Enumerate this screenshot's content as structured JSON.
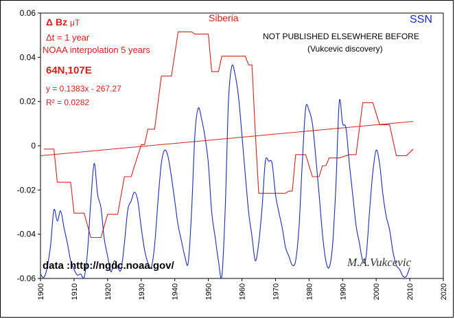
{
  "chart_data": {
    "type": "line",
    "title": "Siberia",
    "xlim": [
      1900,
      2020
    ],
    "ylim": [
      -0.06,
      0.06
    ],
    "x_ticks": [
      1900,
      1910,
      1920,
      1930,
      1940,
      1950,
      1960,
      1970,
      1980,
      1990,
      2000,
      2010,
      2020
    ],
    "y_ticks": [
      "0.06",
      "0.04",
      "0.02",
      "0",
      "-0.02",
      "-0.04",
      "-0.06"
    ],
    "y_tick_values": [
      0.06,
      0.04,
      0.02,
      0,
      -0.02,
      -0.04,
      -0.06
    ],
    "grid": false,
    "series": [
      {
        "name": "Δ Bz μT",
        "color": "#d42020",
        "points": [
          [
            1901,
            -0.0015
          ],
          [
            1904,
            -0.0015
          ],
          [
            1905,
            -0.0165
          ],
          [
            1909,
            -0.0165
          ],
          [
            1910,
            -0.0305
          ],
          [
            1913,
            -0.0305
          ],
          [
            1915,
            -0.0415
          ],
          [
            1918,
            -0.0415
          ],
          [
            1920,
            -0.031
          ],
          [
            1923,
            -0.031
          ],
          [
            1925,
            -0.014
          ],
          [
            1927,
            -0.014
          ],
          [
            1930,
            0.0005
          ],
          [
            1931,
            0.0005
          ],
          [
            1932,
            0.0075
          ],
          [
            1934,
            0.0075
          ],
          [
            1936,
            0.0315
          ],
          [
            1939,
            0.0315
          ],
          [
            1941,
            0.0515
          ],
          [
            1945,
            0.0515
          ],
          [
            1946,
            0.0505
          ],
          [
            1950,
            0.0505
          ],
          [
            1951,
            0.0335
          ],
          [
            1953,
            0.0335
          ],
          [
            1954,
            0.0405
          ],
          [
            1961,
            0.0405
          ],
          [
            1962,
            0.0365
          ],
          [
            1963,
            0.0365
          ],
          [
            1964,
            0.0055
          ],
          [
            1965,
            -0.0215
          ],
          [
            1973,
            -0.0215
          ],
          [
            1974,
            -0.0205
          ],
          [
            1975,
            -0.0205
          ],
          [
            1976,
            -0.004
          ],
          [
            1979,
            -0.004
          ],
          [
            1981,
            -0.014
          ],
          [
            1983,
            -0.014
          ],
          [
            1984,
            -0.009
          ],
          [
            1985,
            -0.009
          ],
          [
            1986,
            -0.0055
          ],
          [
            1989,
            -0.0055
          ],
          [
            1992,
            -0.004
          ],
          [
            1994,
            -0.004
          ],
          [
            1996,
            0.0195
          ],
          [
            1999,
            0.0195
          ],
          [
            2001,
            0.0095
          ],
          [
            2004,
            0.0095
          ],
          [
            2006,
            -0.0045
          ],
          [
            2009,
            -0.0045
          ],
          [
            2011,
            -0.0015
          ]
        ]
      },
      {
        "name": "SSN",
        "color": "#1a2ab8",
        "points": [
          [
            1900,
            -0.058
          ],
          [
            1901,
            -0.0595
          ],
          [
            1902,
            -0.055
          ],
          [
            1903,
            -0.045
          ],
          [
            1904,
            -0.029
          ],
          [
            1905,
            -0.034
          ],
          [
            1906,
            -0.0295
          ],
          [
            1907,
            -0.037
          ],
          [
            1908,
            -0.044
          ],
          [
            1909,
            -0.052
          ],
          [
            1910,
            -0.056
          ],
          [
            1911,
            -0.0585
          ],
          [
            1912,
            -0.058
          ],
          [
            1913,
            -0.0595
          ],
          [
            1914,
            -0.048
          ],
          [
            1915,
            -0.025
          ],
          [
            1916,
            -0.008
          ],
          [
            1917,
            -0.022
          ],
          [
            1918,
            -0.028
          ],
          [
            1919,
            -0.042
          ],
          [
            1920,
            -0.05
          ],
          [
            1921,
            -0.057
          ],
          [
            1922,
            -0.052
          ],
          [
            1923,
            -0.055
          ],
          [
            1924,
            -0.056
          ],
          [
            1925,
            -0.044
          ],
          [
            1926,
            -0.029
          ],
          [
            1927,
            -0.025
          ],
          [
            1928,
            -0.021
          ],
          [
            1929,
            -0.025
          ],
          [
            1930,
            -0.037
          ],
          [
            1931,
            -0.047
          ],
          [
            1932,
            -0.053
          ],
          [
            1933,
            -0.055
          ],
          [
            1934,
            -0.045
          ],
          [
            1935,
            -0.025
          ],
          [
            1936,
            -0.008
          ],
          [
            1937,
            -0.002
          ],
          [
            1938,
            -0.005
          ],
          [
            1939,
            -0.014
          ],
          [
            1940,
            -0.025
          ],
          [
            1941,
            -0.036
          ],
          [
            1942,
            -0.043
          ],
          [
            1943,
            -0.05
          ],
          [
            1944,
            -0.053
          ],
          [
            1945,
            -0.03
          ],
          [
            1946,
            0.005
          ],
          [
            1947,
            0.017
          ],
          [
            1948,
            0.012
          ],
          [
            1949,
            0.004
          ],
          [
            1950,
            -0.008
          ],
          [
            1951,
            -0.03
          ],
          [
            1952,
            -0.041
          ],
          [
            1953,
            -0.052
          ],
          [
            1954,
            -0.059
          ],
          [
            1955,
            -0.03
          ],
          [
            1956,
            0.02
          ],
          [
            1957,
            0.036
          ],
          [
            1958,
            0.032
          ],
          [
            1959,
            0.022
          ],
          [
            1960,
            0.005
          ],
          [
            1961,
            -0.013
          ],
          [
            1962,
            -0.03
          ],
          [
            1963,
            -0.041
          ],
          [
            1964,
            -0.052
          ],
          [
            1965,
            -0.044
          ],
          [
            1966,
            -0.028
          ],
          [
            1967,
            -0.007
          ],
          [
            1968,
            -0.007
          ],
          [
            1969,
            -0.008
          ],
          [
            1970,
            -0.022
          ],
          [
            1971,
            -0.03
          ],
          [
            1972,
            -0.037
          ],
          [
            1973,
            -0.046
          ],
          [
            1974,
            -0.05
          ],
          [
            1975,
            -0.054
          ],
          [
            1976,
            -0.052
          ],
          [
            1977,
            -0.037
          ],
          [
            1978,
            -0.007
          ],
          [
            1979,
            0.017
          ],
          [
            1980,
            0.016
          ],
          [
            1981,
            0.01
          ],
          [
            1982,
            -0.005
          ],
          [
            1983,
            -0.022
          ],
          [
            1984,
            -0.04
          ],
          [
            1985,
            -0.052
          ],
          [
            1986,
            -0.055
          ],
          [
            1987,
            -0.045
          ],
          [
            1988,
            -0.018
          ],
          [
            1989,
            0.02
          ],
          [
            1990,
            0.01
          ],
          [
            1991,
            0.008
          ],
          [
            1992,
            -0.008
          ],
          [
            1993,
            -0.022
          ],
          [
            1994,
            -0.036
          ],
          [
            1995,
            -0.044
          ],
          [
            1996,
            -0.052
          ],
          [
            1997,
            -0.05
          ],
          [
            1998,
            -0.03
          ],
          [
            1999,
            -0.012
          ],
          [
            2000,
            -0.002
          ],
          [
            2001,
            -0.008
          ],
          [
            2002,
            -0.022
          ],
          [
            2003,
            -0.032
          ],
          [
            2004,
            -0.038
          ],
          [
            2005,
            -0.048
          ],
          [
            2006,
            -0.054
          ],
          [
            2007,
            -0.056
          ],
          [
            2008,
            -0.059
          ],
          [
            2009,
            -0.059
          ],
          [
            2010,
            -0.055
          ]
        ]
      }
    ],
    "trendline": {
      "label": "y = 0.1383x - 267.27",
      "r2_label": "R² = 0.0282",
      "color": "#d42020",
      "from": [
        1900,
        -0.0045
      ],
      "to": [
        2011,
        0.011
      ]
    }
  },
  "annotations": {
    "dbz_symbol": "Δ Bz",
    "dbz_unit": "μT",
    "dt": "Δt = 1 year",
    "noaa": "NOAA interpolation 5 years",
    "location": "64N,107E",
    "ssn": "SSN",
    "not_published": "NOT PUBLISHED ELSEWHERE BEFORE",
    "discovery": "(Vukcevic discovery)",
    "data_source": "data  :http://ngdc.noaa.gov/",
    "signature": "M.A.Vukcevic"
  }
}
